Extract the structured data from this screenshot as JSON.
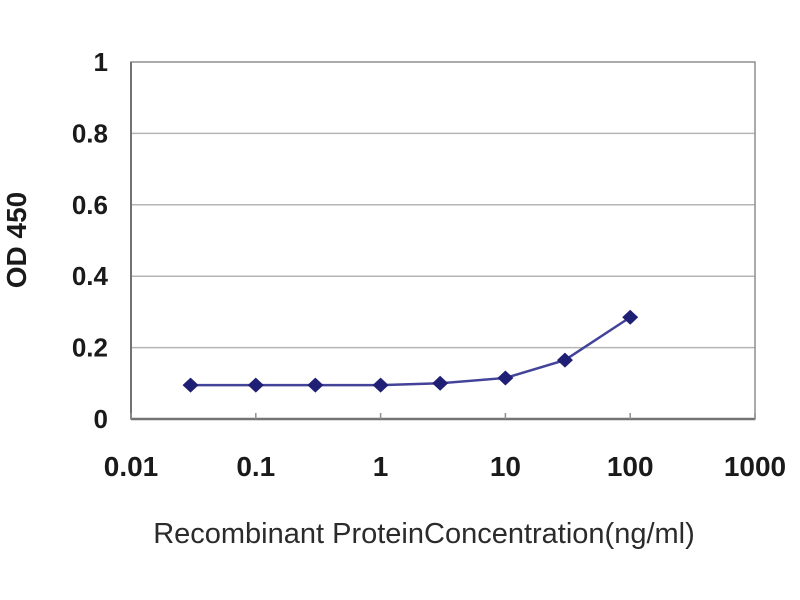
{
  "figure": {
    "background": "#ffffff"
  },
  "chart_data": {
    "type": "line",
    "title": "",
    "xlabel": "Recombinant ProteinConcentration(ng/ml)",
    "ylabel": "OD 450",
    "x_scale": "log10",
    "xlim": [
      0.01,
      1000
    ],
    "ylim": [
      0,
      1
    ],
    "x_ticks": [
      "0.01",
      "0.1",
      "1",
      "10",
      "100",
      "1000"
    ],
    "y_ticks": [
      "0",
      "0.2",
      "0.4",
      "0.6",
      "0.8",
      "1"
    ],
    "grid": "horizontal-only",
    "legend": "none",
    "marker": "diamond",
    "series": [
      {
        "name": "OD 450",
        "x": [
          0.03,
          0.1,
          0.3,
          1,
          3,
          10,
          30,
          100
        ],
        "y": [
          0.095,
          0.095,
          0.095,
          0.095,
          0.1,
          0.115,
          0.165,
          0.285
        ],
        "line_color": "#43439a",
        "marker_color": "#1f1f75"
      }
    ],
    "colors": {
      "grid": "#b5b5b5",
      "axis": "#737373",
      "border": "#8f8f8f",
      "tick_text": "#1a1a1a",
      "label_text": "#2b2b2b"
    }
  }
}
